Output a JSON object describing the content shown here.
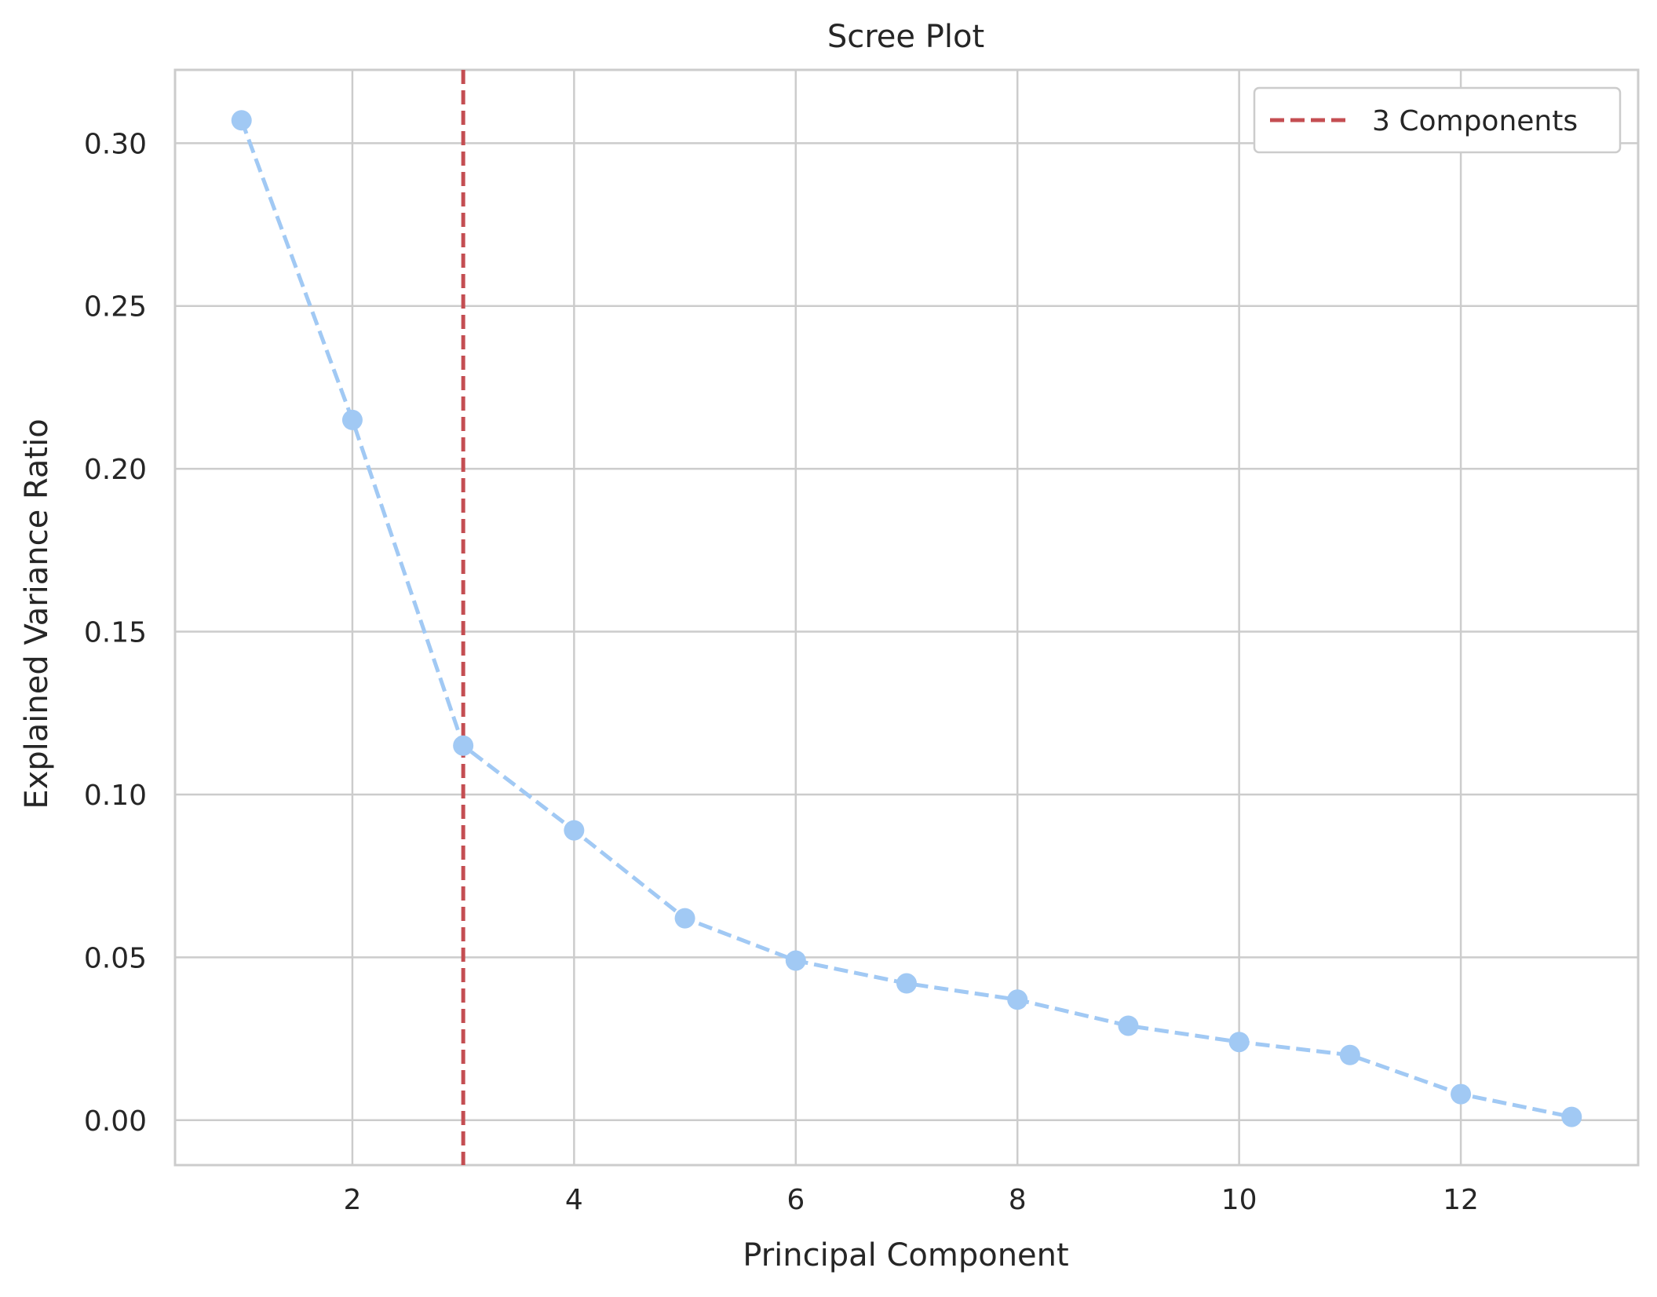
{
  "chart_data": {
    "type": "line",
    "title": "Scree Plot",
    "xlabel": "Principal Component",
    "ylabel": "Explained Variance Ratio",
    "xlim": [
      0.4,
      13.6
    ],
    "ylim": [
      -0.0138,
      0.3225
    ],
    "xticks": [
      2,
      4,
      6,
      8,
      10,
      12
    ],
    "xtick_labels": [
      "2",
      "4",
      "6",
      "8",
      "10",
      "12"
    ],
    "yticks": [
      0.0,
      0.05,
      0.1,
      0.15,
      0.2,
      0.25,
      0.3
    ],
    "ytick_labels": [
      "0.00",
      "0.05",
      "0.10",
      "0.15",
      "0.20",
      "0.25",
      "0.30"
    ],
    "grid": true,
    "legend_position": "top-right",
    "series": [
      {
        "x": [
          1,
          2,
          3,
          4,
          5,
          6,
          7,
          8,
          9,
          10,
          11,
          12,
          13
        ],
        "values": [
          0.307,
          0.215,
          0.115,
          0.089,
          0.062,
          0.049,
          0.042,
          0.037,
          0.029,
          0.024,
          0.02,
          0.008,
          0.001
        ],
        "color": "#a1c9f4",
        "line_style": "dashed",
        "marker": "circle"
      }
    ],
    "reference_lines": [
      {
        "orientation": "vertical",
        "x": 3,
        "label": "3 Components",
        "color": "#c44e52",
        "line_style": "dashed"
      }
    ]
  }
}
